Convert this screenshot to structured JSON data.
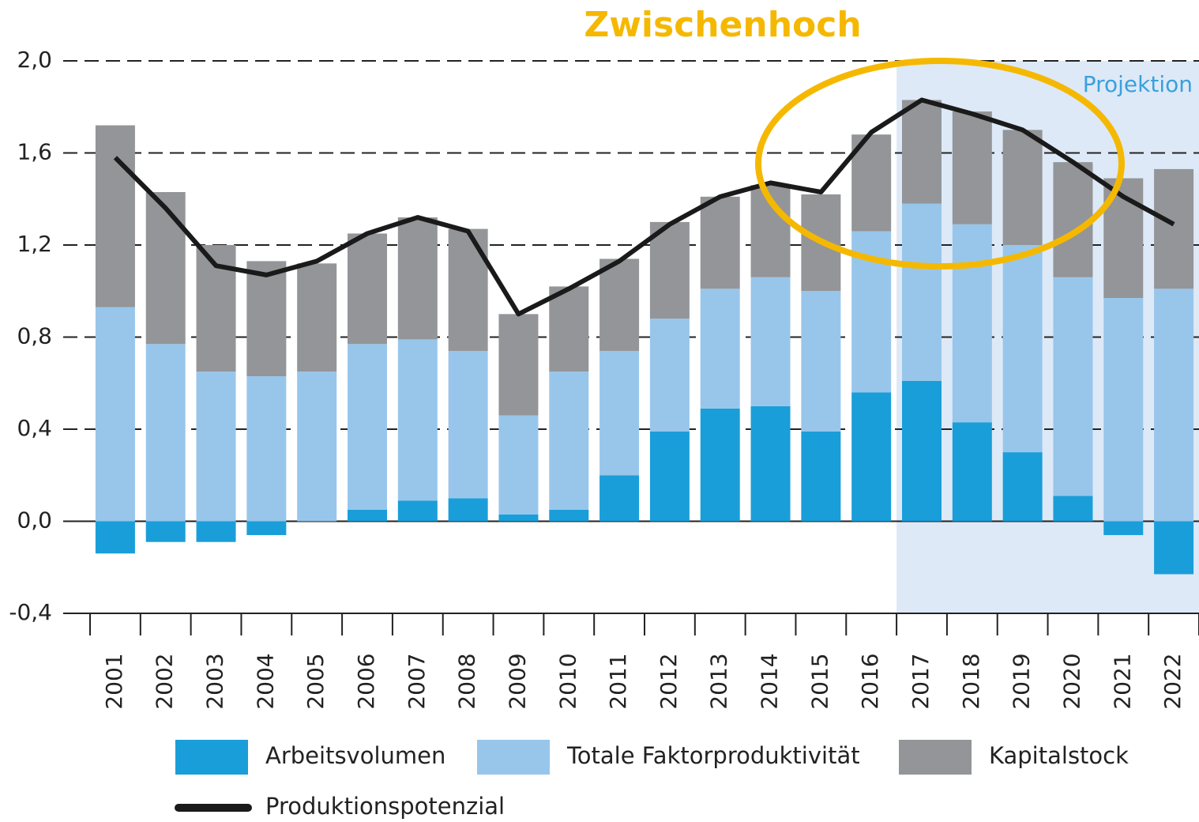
{
  "chart_data": {
    "type": "stacked-bar-line",
    "annotation": "Zwischenhoch",
    "shaded_region": {
      "label": "Projektion",
      "from": "2017",
      "to": "2022",
      "color": "#dde9f7"
    },
    "categories": [
      "2001",
      "2002",
      "2003",
      "2004",
      "2005",
      "2006",
      "2007",
      "2008",
      "2009",
      "2010",
      "2011",
      "2012",
      "2013",
      "2014",
      "2015",
      "2016",
      "2017",
      "2018",
      "2019",
      "2020",
      "2021",
      "2022"
    ],
    "series": [
      {
        "name": "Arbeitsvolumen",
        "color": "#1a9ed9",
        "type": "bar",
        "values": [
          -0.14,
          -0.09,
          -0.09,
          -0.06,
          0,
          0.05,
          0.09,
          0.1,
          0.03,
          0.05,
          0.2,
          0.39,
          0.49,
          0.5,
          0.39,
          0.56,
          0.61,
          0.43,
          0.3,
          0.11,
          -0.06,
          -0.23
        ]
      },
      {
        "name": "Totale Faktorproduktivität",
        "color": "#98c6eb",
        "type": "bar",
        "values": [
          0.93,
          0.77,
          0.65,
          0.63,
          0.65,
          0.72,
          0.7,
          0.64,
          0.43,
          0.6,
          0.54,
          0.49,
          0.52,
          0.56,
          0.61,
          0.7,
          0.77,
          0.86,
          0.9,
          0.95,
          0.97,
          1.01
        ]
      },
      {
        "name": "Kapitalstock",
        "color": "#939598",
        "type": "bar",
        "values": [
          0.79,
          0.66,
          0.55,
          0.5,
          0.47,
          0.48,
          0.53,
          0.53,
          0.44,
          0.37,
          0.4,
          0.42,
          0.4,
          0.4,
          0.42,
          0.42,
          0.45,
          0.49,
          0.5,
          0.5,
          0.52,
          0.52
        ]
      },
      {
        "name": "Produktionspotenzial",
        "color": "#1a1a1a",
        "type": "line",
        "values": [
          1.58,
          1.36,
          1.11,
          1.07,
          1.13,
          1.25,
          1.32,
          1.26,
          0.9,
          1.01,
          1.13,
          1.29,
          1.41,
          1.47,
          1.43,
          1.69,
          1.83,
          1.77,
          1.7,
          1.56,
          1.41,
          1.29
        ]
      }
    ],
    "ylim": [
      -0.4,
      2.0
    ],
    "yticks": [
      {
        "value": -0.4,
        "label": "-0,4"
      },
      {
        "value": 0,
        "label": "0,0"
      },
      {
        "value": 0.4,
        "label": "0,4"
      },
      {
        "value": 0.8,
        "label": "0,8"
      },
      {
        "value": 1.2,
        "label": "1,2"
      },
      {
        "value": 1.6,
        "label": "1,6"
      },
      {
        "value": 2.0,
        "label": "2,0"
      }
    ],
    "grid": true
  }
}
